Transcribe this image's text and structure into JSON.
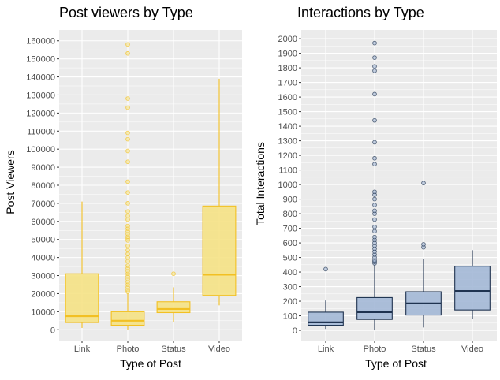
{
  "chart_data": [
    {
      "type": "box",
      "title": "Post viewers by Type",
      "xlabel": "Type of Post",
      "ylabel": "Post Viewers",
      "categories": [
        "Link",
        "Photo",
        "Status",
        "Video"
      ],
      "ylim": [
        -6000,
        166000
      ],
      "yticks": [
        0,
        10000,
        20000,
        30000,
        40000,
        50000,
        60000,
        70000,
        80000,
        90000,
        100000,
        110000,
        120000,
        130000,
        140000,
        150000,
        160000
      ],
      "grid": true,
      "colors": {
        "fill": "#f5e285",
        "stroke": "#f2c023",
        "panel": "#ebebeb",
        "grid": "#ffffff"
      },
      "boxes": [
        {
          "category": "Link",
          "min": 1000,
          "q1": 4000,
          "median": 7500,
          "q3": 31000,
          "max": 71000,
          "outliers": []
        },
        {
          "category": "Photo",
          "min": 0,
          "q1": 2500,
          "median": 5000,
          "q3": 10000,
          "max": 20000,
          "outliers": [
            21000,
            22000,
            23500,
            25000,
            26500,
            28000,
            29500,
            31000,
            32500,
            34000,
            35500,
            38000,
            40000,
            42000,
            44000,
            46500,
            49500,
            50500,
            51500,
            53000,
            54500,
            56000,
            57500,
            61000,
            63000,
            65500,
            70000,
            76000,
            82000,
            93000,
            99000,
            105500,
            109000,
            123000,
            128000,
            153000,
            158000
          ]
        },
        {
          "category": "Status",
          "min": 4500,
          "q1": 9500,
          "median": 11500,
          "q3": 15500,
          "max": 23500,
          "outliers": [
            31000
          ]
        },
        {
          "category": "Video",
          "min": 13500,
          "q1": 19000,
          "median": 30500,
          "q3": 68500,
          "max": 139000,
          "outliers": []
        }
      ]
    },
    {
      "type": "box",
      "title": "Interactions by Type",
      "xlabel": "Type of Post",
      "ylabel": "Total Interactions",
      "categories": [
        "Link",
        "Photo",
        "Status",
        "Video"
      ],
      "ylim": [
        -70,
        2060
      ],
      "yticks": [
        0,
        100,
        200,
        300,
        400,
        500,
        600,
        700,
        800,
        900,
        1000,
        1100,
        1200,
        1300,
        1400,
        1500,
        1600,
        1700,
        1800,
        1900,
        2000
      ],
      "grid": true,
      "colors": {
        "fill": "#a3b8d6",
        "stroke": "#1f3350",
        "panel": "#ebebeb",
        "grid": "#ffffff"
      },
      "boxes": [
        {
          "category": "Link",
          "min": 10,
          "q1": 35,
          "median": 55,
          "q3": 125,
          "max": 205,
          "outliers": [
            420
          ]
        },
        {
          "category": "Photo",
          "min": 0,
          "q1": 75,
          "median": 125,
          "q3": 225,
          "max": 450,
          "outliers": [
            460,
            470,
            480,
            500,
            520,
            540,
            560,
            580,
            600,
            620,
            640,
            680,
            710,
            760,
            800,
            820,
            860,
            900,
            930,
            950,
            1140,
            1180,
            1290,
            1440,
            1620,
            1780,
            1810,
            1870,
            1970
          ]
        },
        {
          "category": "Status",
          "min": 20,
          "q1": 105,
          "median": 185,
          "q3": 265,
          "max": 490,
          "outliers": [
            570,
            590,
            1010
          ]
        },
        {
          "category": "Video",
          "min": 80,
          "q1": 140,
          "median": 270,
          "q3": 440,
          "max": 550,
          "outliers": []
        }
      ]
    }
  ]
}
